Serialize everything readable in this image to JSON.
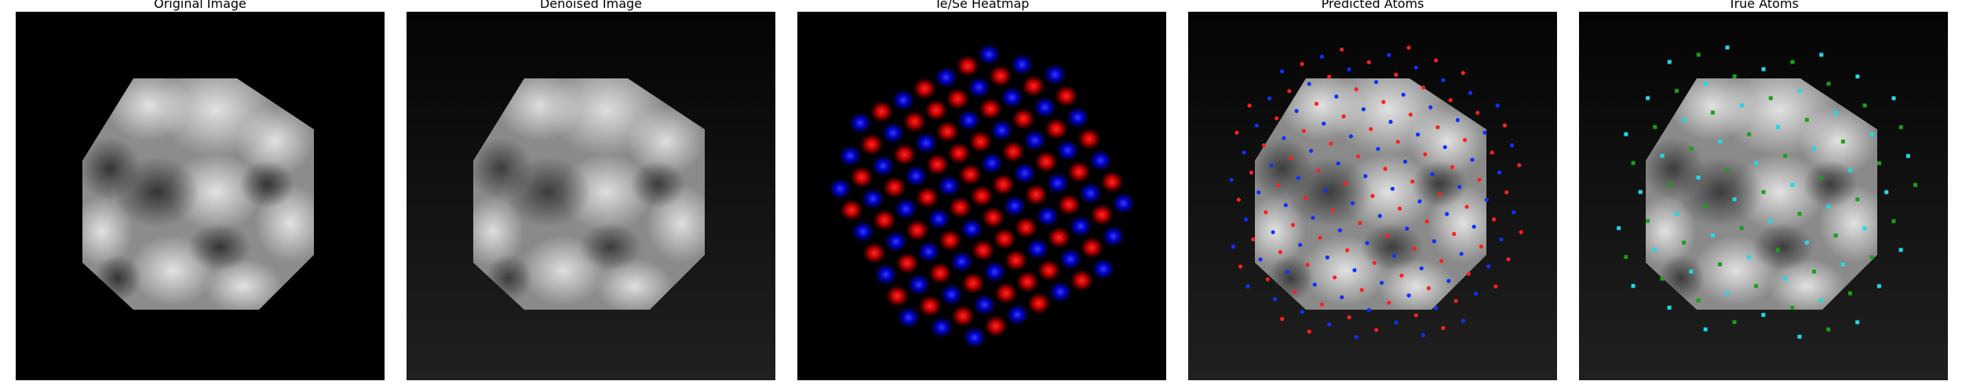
{
  "figure": {
    "panels": [
      {
        "id": "original",
        "title": "Original Image"
      },
      {
        "id": "denoised",
        "title": "Denoised Image"
      },
      {
        "id": "heatmap",
        "title": "Te/Se Heatmap"
      },
      {
        "id": "predicted",
        "title": "Predicted Atoms"
      },
      {
        "id": "true",
        "title": "True Atoms"
      }
    ]
  },
  "colors": {
    "te_marker": "#ff2020",
    "se_marker": "#1030ff",
    "true_te_marker": "#1aa01a",
    "true_se_marker": "#22d8e6",
    "frame_background": "#000000"
  }
}
